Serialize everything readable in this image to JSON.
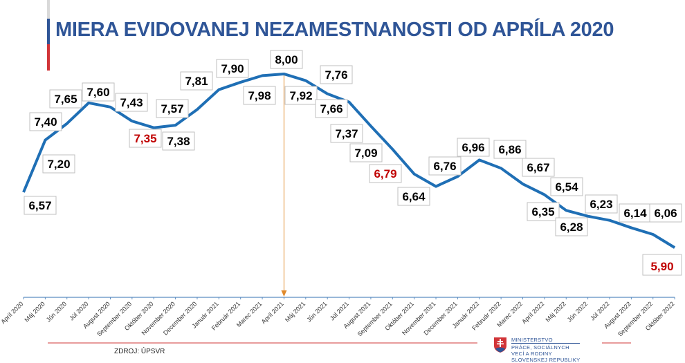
{
  "title": "MIERA EVIDOVANEJ NEZAMESTNANOSTI OD APRÍLA 2020",
  "source": "ZDROJ: ÚPSVR",
  "logo": {
    "lines": [
      "MINISTERSTVO",
      "PRÁCE, SOCIÁLNYCH",
      "VECÍ A RODINY",
      "SLOVENSKEJ REPUBLIKY"
    ]
  },
  "colors": {
    "line": "#1f6fb5",
    "title": "#2f5597",
    "highlight": "#c00000",
    "arrow": "#e08a2c",
    "axis": "#5b8cc0",
    "rule": "#e07b7b"
  },
  "chart_data": {
    "type": "line",
    "title": "MIERA EVIDOVANEJ NEZAMESTNANOSTI OD APRÍLA 2020",
    "categories": [
      "Apríl 2020",
      "Máj 2020",
      "Jún 2020",
      "Júl 2020",
      "August 2020",
      "September 2020",
      "Október 2020",
      "November 2020",
      "December 2020",
      "Január 2021",
      "Február 2021",
      "Marec 2021",
      "Apríl 2021",
      "Máj 2021",
      "Jún 2021",
      "Júl 2021",
      "August 2021",
      "September 2021",
      "Október 2021",
      "November 2021",
      "December 2021",
      "Január 2022",
      "Február 2022",
      "Marec 2022",
      "Apríl 2022",
      "Máj 2022",
      "Jún 2022",
      "Júl 2022",
      "August 2022",
      "September 2022",
      "Október 2022"
    ],
    "values": [
      6.57,
      7.2,
      7.4,
      7.65,
      7.6,
      7.43,
      7.35,
      7.38,
      7.57,
      7.81,
      7.9,
      7.98,
      8.0,
      7.92,
      7.76,
      7.66,
      7.37,
      7.09,
      6.79,
      6.64,
      6.76,
      6.96,
      6.86,
      6.67,
      6.54,
      6.35,
      6.28,
      6.23,
      6.14,
      6.06,
      5.9
    ],
    "data_labels": [
      "6,57",
      "7,20",
      "7,40",
      "7,65",
      "7,60",
      "7,43",
      "7,35",
      "7,38",
      "7,57",
      "7,81",
      "7,90",
      "7,98",
      "8,00",
      "7,92",
      "7,76",
      "7,66",
      "7,37",
      "7,09",
      "6,79",
      "6,64",
      "6,76",
      "6,96",
      "6,86",
      "6,67",
      "6,54",
      "6,35",
      "6,28",
      "6,23",
      "6,14",
      "6,06",
      "5,90"
    ],
    "highlighted": [
      "Október 2020",
      "Október 2021",
      "Október 2022"
    ],
    "marker": "Apríl 2021",
    "grid": false,
    "legend": "none"
  }
}
